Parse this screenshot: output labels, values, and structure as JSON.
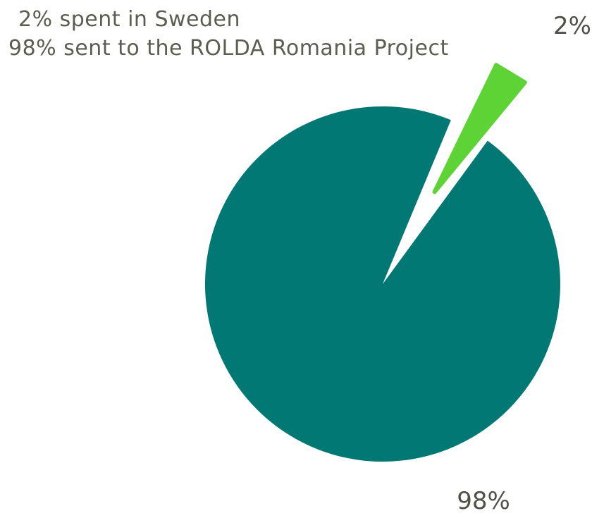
{
  "legend": {
    "line1": "2% spent in Sweden",
    "line2": "98% sent to the ROLDA Romania Project"
  },
  "chart_data": {
    "type": "pie",
    "title": "",
    "slices": [
      {
        "label": "98%",
        "value": 98,
        "color": "#017873",
        "exploded": false
      },
      {
        "label": "2%",
        "value": 2,
        "color": "#5ed336",
        "exploded": true
      }
    ]
  }
}
